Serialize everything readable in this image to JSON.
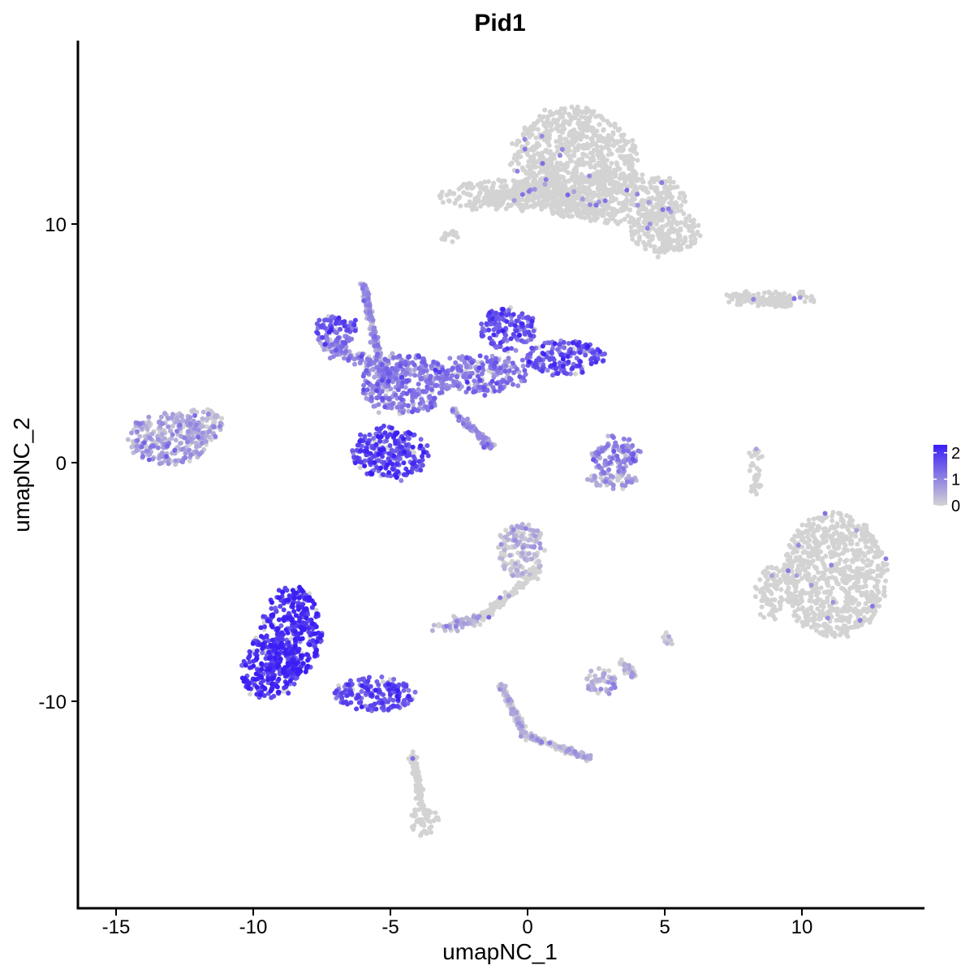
{
  "chart_data": {
    "type": "scatter",
    "title": "Pid1",
    "xlabel": "umapNC_1",
    "ylabel": "umapNC_2",
    "xlim": [
      -16.5,
      14.5
    ],
    "ylim": [
      -18.5,
      17.8
    ],
    "x_ticks": [
      -15,
      -10,
      -5,
      0,
      5,
      10
    ],
    "x_tick_labels": [
      "-15",
      "-10",
      "-5",
      "0",
      "5",
      "10"
    ],
    "y_ticks": [
      -10,
      0,
      10
    ],
    "y_tick_labels": [
      "-10",
      "0",
      "10"
    ],
    "grid": false,
    "legend": {
      "placement": "right",
      "type": "colorbar",
      "min": 0,
      "max": 2.3,
      "ticks": [
        2,
        1,
        0
      ],
      "tick_labels": [
        "2",
        "1",
        "0"
      ],
      "color_low": "#d3d3d3",
      "color_high": "#3a1ef5"
    },
    "clusters": [
      {
        "name": "",
        "cx": 1.7,
        "cy": 12.6,
        "rx": 2.3,
        "ry": 2.3,
        "expr": 0.1
      },
      {
        "name": "",
        "cx": 3.4,
        "cy": 11.1,
        "rx": 2.4,
        "ry": 1.1,
        "expr": 0.08
      },
      {
        "name": "",
        "cx": 5.0,
        "cy": 9.7,
        "rx": 1.3,
        "ry": 0.9,
        "expr": 0.05
      },
      {
        "name": "",
        "cx": -0.6,
        "cy": 11.2,
        "rx": 2.7,
        "ry": 0.6,
        "expr": 0.05
      },
      {
        "name": "",
        "cx": 8.9,
        "cy": 6.9,
        "rx": 1.7,
        "ry": 0.3,
        "expr": 0.03
      },
      {
        "name": "",
        "cx": -13.1,
        "cy": 1.0,
        "rx": 1.5,
        "ry": 1.1,
        "expr": 0.6
      },
      {
        "name": "",
        "cx": -11.8,
        "cy": 1.6,
        "rx": 0.7,
        "ry": 0.7,
        "expr": 0.35
      },
      {
        "name": "",
        "cx": -7.0,
        "cy": 5.5,
        "rx": 0.8,
        "ry": 0.7,
        "expr": 1.35
      },
      {
        "name": "",
        "cx": -5.0,
        "cy": 0.4,
        "rx": 1.4,
        "ry": 1.1,
        "expr": 1.7
      },
      {
        "name": "",
        "cx": -4.5,
        "cy": 3.3,
        "rx": 1.6,
        "ry": 1.3,
        "expr": 1.0
      },
      {
        "name": "",
        "cx": -0.7,
        "cy": 5.6,
        "rx": 1.0,
        "ry": 0.9,
        "expr": 1.5
      },
      {
        "name": "",
        "cx": 1.4,
        "cy": 4.4,
        "rx": 1.5,
        "ry": 0.7,
        "expr": 1.55
      },
      {
        "name": "",
        "cx": -1.7,
        "cy": 3.7,
        "rx": 1.7,
        "ry": 0.8,
        "expr": 1.1
      },
      {
        "name": "",
        "cx": 3.2,
        "cy": 0.3,
        "rx": 0.8,
        "ry": 0.9,
        "expr": 0.85
      },
      {
        "name": "",
        "cx": 3.1,
        "cy": -0.7,
        "rx": 0.9,
        "ry": 0.35,
        "expr": 0.5
      },
      {
        "name": "",
        "cx": 11.2,
        "cy": -4.7,
        "rx": 1.9,
        "ry": 2.6,
        "expr": 0.04
      },
      {
        "name": "",
        "cx": 8.8,
        "cy": -5.4,
        "rx": 0.5,
        "ry": 1.1,
        "expr": 0.04
      },
      {
        "name": "",
        "cx": 8.3,
        "cy": -0.3,
        "rx": 0.2,
        "ry": 1.1,
        "expr": 0.02
      },
      {
        "name": "",
        "cx": -0.2,
        "cy": -3.7,
        "rx": 0.9,
        "ry": 1.1,
        "expr": 0.25
      },
      {
        "name": "",
        "cx": -8.6,
        "cy": -7.1,
        "rx": 1.1,
        "ry": 1.9,
        "expr": 2.0
      },
      {
        "name": "",
        "cx": -9.4,
        "cy": -8.6,
        "rx": 1.1,
        "ry": 1.3,
        "expr": 1.95
      },
      {
        "name": "",
        "cx": -5.6,
        "cy": -9.7,
        "rx": 1.5,
        "ry": 0.7,
        "expr": 1.6
      },
      {
        "name": "",
        "cx": -3.8,
        "cy": -15.0,
        "rx": 0.5,
        "ry": 0.6,
        "expr": 0.05
      },
      {
        "name": "",
        "cx": 2.7,
        "cy": -9.2,
        "rx": 0.6,
        "ry": 0.5,
        "expr": 0.35
      },
      {
        "name": "",
        "cx": -3.2,
        "cy": -6.9,
        "rx": 0.3,
        "ry": 0.2,
        "expr": 0.3
      },
      {
        "name": "",
        "cx": 5.1,
        "cy": -7.4,
        "rx": 0.2,
        "ry": 0.3,
        "expr": 0.2
      },
      {
        "name": "",
        "cx": -2.9,
        "cy": 9.5,
        "rx": 0.3,
        "ry": 0.35,
        "expr": 0.02
      }
    ],
    "streams": [
      {
        "name": "",
        "x1": -1.5,
        "y1": 11.0,
        "x2": 1.2,
        "y2": 11.8,
        "width": 0.2,
        "expr": 0.05
      },
      {
        "name": "",
        "x1": 0.4,
        "y1": -4.5,
        "x2": -1.7,
        "y2": -6.5,
        "width": 0.15,
        "expr": 0.1
      },
      {
        "name": "",
        "x1": -1.7,
        "y1": -6.6,
        "x2": -3.0,
        "y2": -6.8,
        "width": 0.25,
        "expr": 0.3
      },
      {
        "name": "",
        "x1": -1.0,
        "y1": -9.3,
        "x2": -0.1,
        "y2": -11.4,
        "width": 0.15,
        "expr": 0.2
      },
      {
        "name": "",
        "x1": -0.1,
        "y1": -11.4,
        "x2": 2.3,
        "y2": -12.4,
        "width": 0.12,
        "expr": 0.2
      },
      {
        "name": "",
        "x1": -4.2,
        "y1": -12.2,
        "x2": -3.8,
        "y2": -14.6,
        "width": 0.12,
        "expr": 0.1
      },
      {
        "name": "",
        "x1": -6.0,
        "y1": 7.5,
        "x2": -5.2,
        "y2": 3.2,
        "width": 0.12,
        "expr": 0.6
      },
      {
        "name": "",
        "x1": -2.7,
        "y1": 2.2,
        "x2": -1.3,
        "y2": 0.6,
        "width": 0.15,
        "expr": 0.6
      },
      {
        "name": "",
        "x1": -7.4,
        "y1": 5.0,
        "x2": -4.8,
        "y2": 3.6,
        "width": 0.3,
        "expr": 0.9
      },
      {
        "name": "",
        "x1": 7.5,
        "y1": 7.0,
        "x2": 9.5,
        "y2": 6.6,
        "width": 0.15,
        "expr": 0.02
      },
      {
        "name": "",
        "x1": 4.8,
        "y1": 8.8,
        "x2": 5.2,
        "y2": 9.4,
        "width": 0.2,
        "expr": 0.02
      },
      {
        "name": "",
        "x1": 3.9,
        "y1": -9.0,
        "x2": 3.4,
        "y2": -8.3,
        "width": 0.15,
        "expr": 0.2
      }
    ]
  }
}
